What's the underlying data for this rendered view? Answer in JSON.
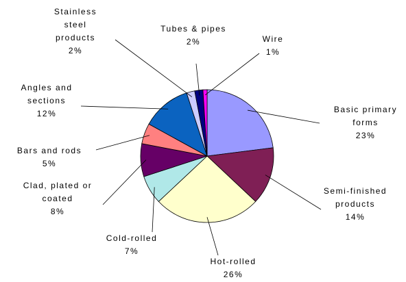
{
  "chart_data": {
    "type": "pie",
    "categories": [
      "Basic primary forms",
      "Semi-finished products",
      "Hot-rolled",
      "Cold-rolled",
      "Clad, plated or coated",
      "Bars and rods",
      "Angles and sections",
      "Stainless steel products",
      "Tubes & pipes",
      "Wire"
    ],
    "values": [
      23,
      14,
      26,
      7,
      8,
      5,
      12,
      2,
      2,
      1
    ],
    "value_labels": [
      "23%",
      "14%",
      "26%",
      "7%",
      "8%",
      "5%",
      "12%",
      "2%",
      "2%",
      "1%"
    ],
    "colors": [
      "#9999ff",
      "#7f1f55",
      "#ffffcc",
      "#b0e8e8",
      "#660066",
      "#ff8080",
      "#0b63c0",
      "#ccccff",
      "#000080",
      "#ff00ff"
    ]
  }
}
